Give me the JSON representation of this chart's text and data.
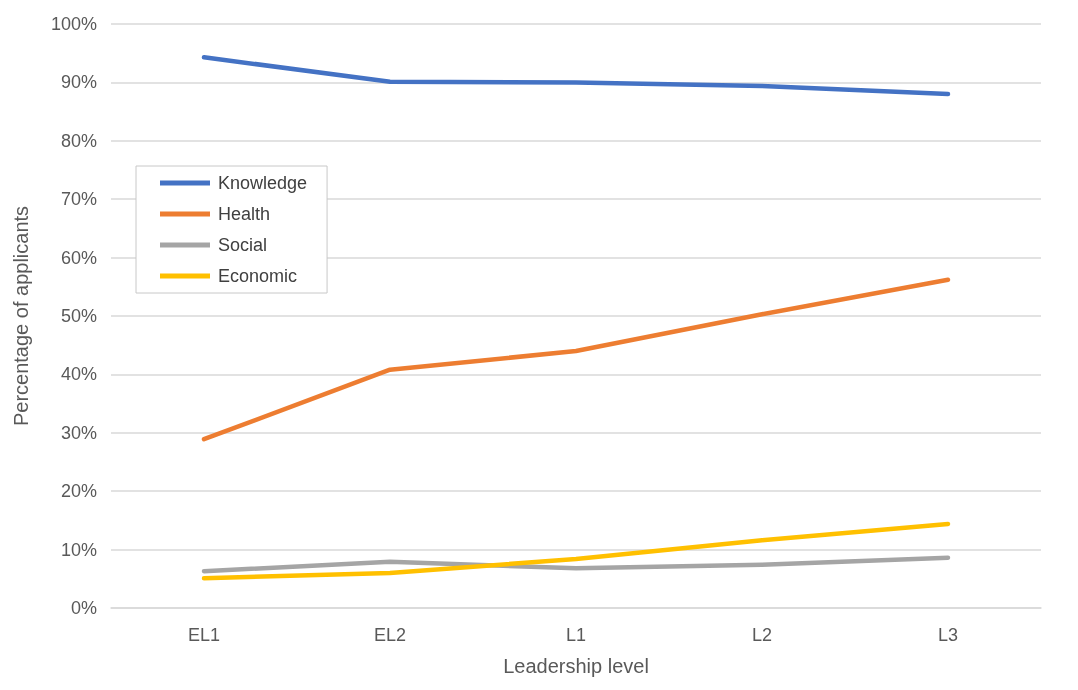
{
  "chart_data": {
    "type": "line",
    "xlabel": "Leadership level",
    "ylabel": "Percentage of applicants",
    "categories": [
      "EL1",
      "EL2",
      "L1",
      "L2",
      "L3"
    ],
    "series": [
      {
        "name": "Knowledge",
        "color": "#4472c4",
        "values": [
          94.3,
          90.1,
          90.0,
          89.4,
          88.0
        ]
      },
      {
        "name": "Health",
        "color": "#ed7d31",
        "values": [
          28.9,
          40.8,
          44.0,
          50.3,
          56.2
        ]
      },
      {
        "name": "Social",
        "color": "#a5a5a5",
        "values": [
          6.3,
          7.9,
          6.8,
          7.4,
          8.6
        ]
      },
      {
        "name": "Economic",
        "color": "#ffc000",
        "values": [
          5.1,
          6.0,
          8.4,
          11.6,
          14.4
        ]
      }
    ],
    "ylim": [
      0,
      100
    ],
    "yticks": [
      {
        "value": 0,
        "label": "0%"
      },
      {
        "value": 10,
        "label": "10%"
      },
      {
        "value": 20,
        "label": "20%"
      },
      {
        "value": 30,
        "label": "30%"
      },
      {
        "value": 40,
        "label": "40%"
      },
      {
        "value": 50,
        "label": "50%"
      },
      {
        "value": 60,
        "label": "60%"
      },
      {
        "value": 70,
        "label": "70%"
      },
      {
        "value": 80,
        "label": "80%"
      },
      {
        "value": 90,
        "label": "90%"
      },
      {
        "value": 100,
        "label": "100%"
      }
    ],
    "grid": "y",
    "legend": "top left",
    "marker": "none",
    "line_style": "solid"
  }
}
